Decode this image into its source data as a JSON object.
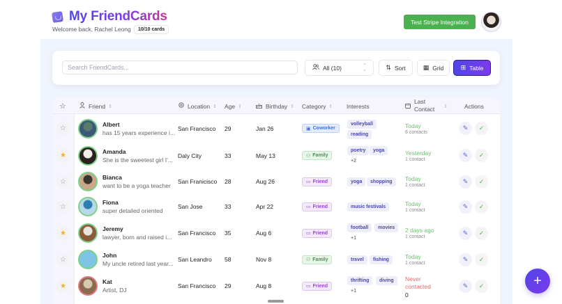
{
  "header": {
    "title": "My FriendCards",
    "welcome": "Welcome back, Rachel Leong",
    "card_count": "10/10 cards",
    "stripe_button": "Test Stripe Integration"
  },
  "toolbar": {
    "search_placeholder": "Search FriendCards...",
    "filter_value": "All (10)",
    "sort_label": "Sort",
    "grid_label": "Grid",
    "table_label": "Table"
  },
  "table": {
    "columns": [
      "Friend",
      "Location",
      "Age",
      "Birthday",
      "Category",
      "Interests",
      "Last Contact",
      "Actions"
    ],
    "last_contact_line1": "Last",
    "last_contact_line2": "Contact",
    "rows": [
      {
        "starred": false,
        "name": "Albert",
        "bio": "has 15 years experience i...",
        "location": "San Francisco",
        "age": "29",
        "birthday": "Jan 26",
        "category": "Coworker",
        "interests": [
          "volleyball",
          "reading"
        ],
        "more": "",
        "last_contact": "Today",
        "contacts": "6 contacts",
        "avatar_colors": [
          "#5a7a6a",
          "#3b5a7a"
        ],
        "ring": "green"
      },
      {
        "starred": true,
        "name": "Amanda",
        "bio": "She is the sweetest girl I'...",
        "location": "Daly City",
        "age": "33",
        "birthday": "May 13",
        "category": "Family",
        "interests": [
          "poetry",
          "yoga"
        ],
        "more": "+2",
        "last_contact": "Yesterday",
        "contacts": "1 contact",
        "avatar_colors": [
          "#f2ede8",
          "#2a221e"
        ],
        "ring": "green"
      },
      {
        "starred": false,
        "name": "Bianca",
        "bio": "want to be a yoga teacher",
        "location": "San Franicisco",
        "age": "28",
        "birthday": "Aug 26",
        "category": "Friend",
        "interests": [
          "yoga",
          "shopping"
        ],
        "more": "",
        "last_contact": "Today",
        "contacts": "1 contact",
        "avatar_colors": [
          "#3a3530",
          "#c9a88a"
        ],
        "ring": "green"
      },
      {
        "starred": false,
        "name": "Fiona",
        "bio": "super detailed oriented",
        "location": "San Jose",
        "age": "33",
        "birthday": "Apr 22",
        "category": "Friend",
        "interests": [
          "music festivals"
        ],
        "more": "",
        "last_contact": "Today",
        "contacts": "1 contact",
        "avatar_colors": [
          "#2e7db0",
          "#b8d8e8"
        ],
        "ring": "green"
      },
      {
        "starred": true,
        "name": "Jeremy",
        "bio": "lawyer, born and raised i...",
        "location": "San Francisco",
        "age": "35",
        "birthday": "Aug 6",
        "category": "Friend",
        "interests": [
          "football",
          "movies"
        ],
        "more": "+1",
        "last_contact": "2 days ago",
        "contacts": "1 contact",
        "avatar_colors": [
          "#e8e4de",
          "#8a5a3a"
        ],
        "ring": "green"
      },
      {
        "starred": false,
        "name": "John",
        "bio": "My uncle retired last year...",
        "location": "San Leandro",
        "age": "58",
        "birthday": "Nov 8",
        "category": "Family",
        "interests": [
          "travel",
          "fishing"
        ],
        "more": "",
        "last_contact": "Today",
        "contacts": "1 contact",
        "avatar_colors": [
          "#7ec4e4",
          "#7ec4e4"
        ],
        "ring": "green"
      },
      {
        "starred": true,
        "name": "Kat",
        "bio": "Artist, DJ",
        "location": "San Francisco",
        "age": "29",
        "birthday": "Aug 8",
        "category": "Friend",
        "interests": [
          "thrifting",
          "diving"
        ],
        "more": "+1",
        "last_contact": "Never contacted",
        "contacts": "0",
        "avatar_colors": [
          "#d8c8b0",
          "#8a6a50"
        ],
        "ring": "red"
      }
    ]
  },
  "fab": {
    "label": "+"
  },
  "icons": {
    "star_empty": "☆",
    "star_filled": "★",
    "edit": "✎",
    "check": "✓",
    "sort_arrows": "⇕"
  },
  "colors": {
    "accent": "#6d3fe0",
    "stripe_green": "#4caf50",
    "contact_today": "#6cc070",
    "never_contacted": "#e06c6c"
  }
}
